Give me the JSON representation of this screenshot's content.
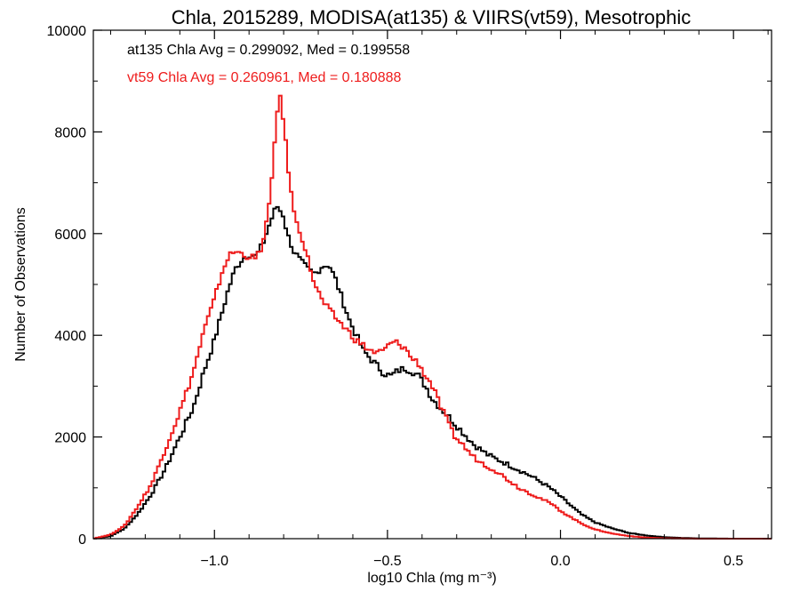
{
  "chart_data": {
    "type": "line",
    "title": "Chla, 2015289, MODISA(at135) & VIIRS(vt59), Mesotrophic",
    "xlabel": "log10 Chla (mg m⁻³)",
    "ylabel": "Number of Observations",
    "xlim": [
      -1.35,
      0.61
    ],
    "ylim": [
      0,
      10000
    ],
    "x_ticks": [
      -1.0,
      -0.5,
      0.0,
      0.5
    ],
    "x_tick_labels": [
      "−1.0",
      "−0.5",
      "0.0",
      "0.5"
    ],
    "y_ticks": [
      0,
      2000,
      4000,
      6000,
      8000,
      10000
    ],
    "y_tick_labels": [
      "0",
      "2000",
      "4000",
      "6000",
      "8000",
      "10000"
    ],
    "grid": false,
    "annotations": [
      {
        "text": "at135 Chla Avg = 0.299092, Med = 0.199558",
        "color": "#000000"
      },
      {
        "text": "vt59 Chla Avg = 0.260961, Med = 0.180888",
        "color": "#ee1c1c"
      }
    ],
    "series": [
      {
        "color": "#000000",
        "x": [
          -1.35,
          -1.3,
          -1.26,
          -1.22,
          -1.18,
          -1.14,
          -1.1,
          -1.06,
          -1.03,
          -1.0,
          -0.98,
          -0.96,
          -0.94,
          -0.92,
          -0.9,
          -0.88,
          -0.86,
          -0.84,
          -0.82,
          -0.8,
          -0.79,
          -0.77,
          -0.75,
          -0.73,
          -0.71,
          -0.69,
          -0.67,
          -0.65,
          -0.63,
          -0.61,
          -0.59,
          -0.57,
          -0.55,
          -0.53,
          -0.51,
          -0.49,
          -0.47,
          -0.45,
          -0.43,
          -0.41,
          -0.39,
          -0.37,
          -0.35,
          -0.33,
          -0.31,
          -0.29,
          -0.27,
          -0.25,
          -0.23,
          -0.21,
          -0.19,
          -0.17,
          -0.15,
          -0.12,
          -0.09,
          -0.06,
          -0.03,
          0.0,
          0.03,
          0.06,
          0.1,
          0.15,
          0.2,
          0.25,
          0.3,
          0.35,
          0.4,
          0.5,
          0.61
        ],
        "y": [
          0,
          50,
          200,
          500,
          900,
          1400,
          2000,
          2600,
          3300,
          3900,
          4400,
          4900,
          5300,
          5500,
          5600,
          5550,
          5800,
          6200,
          6550,
          6350,
          6000,
          5650,
          5450,
          5300,
          5200,
          5350,
          5400,
          5100,
          4700,
          4300,
          4000,
          3700,
          3550,
          3400,
          3250,
          3200,
          3300,
          3350,
          3300,
          3200,
          3000,
          2750,
          2600,
          2450,
          2300,
          2150,
          2000,
          1850,
          1750,
          1650,
          1580,
          1520,
          1450,
          1350,
          1250,
          1130,
          1000,
          830,
          650,
          480,
          320,
          200,
          110,
          60,
          30,
          15,
          5,
          0,
          0
        ]
      },
      {
        "color": "#ee1c1c",
        "x": [
          -1.35,
          -1.3,
          -1.26,
          -1.22,
          -1.18,
          -1.14,
          -1.1,
          -1.06,
          -1.03,
          -1.0,
          -0.98,
          -0.96,
          -0.94,
          -0.92,
          -0.9,
          -0.88,
          -0.86,
          -0.84,
          -0.83,
          -0.82,
          -0.81,
          -0.8,
          -0.79,
          -0.78,
          -0.77,
          -0.75,
          -0.73,
          -0.71,
          -0.69,
          -0.67,
          -0.65,
          -0.63,
          -0.61,
          -0.59,
          -0.57,
          -0.55,
          -0.53,
          -0.51,
          -0.49,
          -0.47,
          -0.45,
          -0.43,
          -0.41,
          -0.39,
          -0.37,
          -0.35,
          -0.33,
          -0.31,
          -0.29,
          -0.27,
          -0.25,
          -0.23,
          -0.21,
          -0.19,
          -0.17,
          -0.15,
          -0.12,
          -0.09,
          -0.06,
          -0.03,
          0.0,
          0.03,
          0.06,
          0.1,
          0.15,
          0.2,
          0.25,
          0.3,
          0.35,
          0.4,
          0.5,
          0.61
        ],
        "y": [
          0,
          80,
          250,
          650,
          1100,
          1800,
          2500,
          3300,
          4100,
          4700,
          5200,
          5550,
          5650,
          5600,
          5550,
          5500,
          5800,
          6600,
          7400,
          8400,
          8650,
          8200,
          7500,
          6900,
          6400,
          6000,
          5500,
          5000,
          4700,
          4500,
          4350,
          4200,
          4050,
          3900,
          3800,
          3700,
          3650,
          3700,
          3850,
          3850,
          3750,
          3550,
          3450,
          3200,
          3000,
          2650,
          2350,
          2050,
          1900,
          1750,
          1600,
          1500,
          1420,
          1350,
          1250,
          1150,
          1000,
          900,
          800,
          700,
          550,
          420,
          300,
          180,
          100,
          50,
          20,
          8,
          3,
          0,
          0,
          0
        ]
      }
    ]
  }
}
